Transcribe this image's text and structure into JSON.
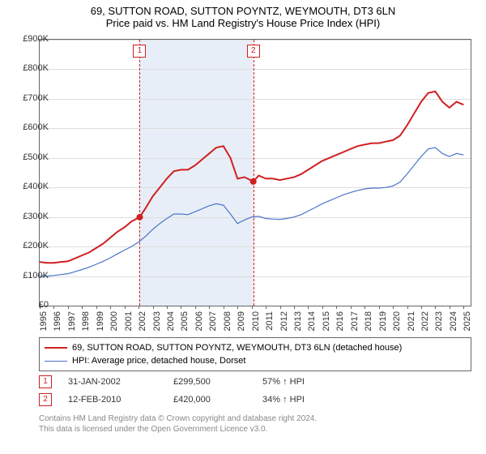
{
  "title": {
    "line1": "69, SUTTON ROAD, SUTTON POYNTZ, WEYMOUTH, DT3 6LN",
    "line2": "Price paid vs. HM Land Registry's House Price Index (HPI)"
  },
  "chart": {
    "type": "line",
    "background_color": "#ffffff",
    "grid_color": "#dddddd",
    "border_color": "#666666",
    "shade_color": "#e8eef7",
    "shade_range": [
      2002.08,
      2010.12
    ],
    "xlim": [
      1995,
      2025.5
    ],
    "ylim": [
      0,
      900
    ],
    "ytick_step": 100,
    "yticks": [
      "£0",
      "£100K",
      "£200K",
      "£300K",
      "£400K",
      "£500K",
      "£600K",
      "£700K",
      "£800K",
      "£900K"
    ],
    "xticks": [
      "1995",
      "1996",
      "1997",
      "1998",
      "1999",
      "2000",
      "2001",
      "2002",
      "2003",
      "2004",
      "2005",
      "2006",
      "2007",
      "2008",
      "2009",
      "2010",
      "2011",
      "2012",
      "2013",
      "2014",
      "2015",
      "2016",
      "2017",
      "2018",
      "2019",
      "2020",
      "2021",
      "2022",
      "2023",
      "2024",
      "2025"
    ],
    "label_fontsize": 11,
    "series": [
      {
        "name": "subject",
        "label": "69, SUTTON ROAD, SUTTON POYNTZ, WEYMOUTH, DT3 6LN (detached house)",
        "color": "#d02020",
        "line_width": 2,
        "data": [
          [
            1995,
            148
          ],
          [
            1995.5,
            145
          ],
          [
            1996,
            145
          ],
          [
            1996.5,
            148
          ],
          [
            1997,
            150
          ],
          [
            1997.5,
            160
          ],
          [
            1998,
            170
          ],
          [
            1998.5,
            180
          ],
          [
            1999,
            195
          ],
          [
            1999.5,
            210
          ],
          [
            2000,
            230
          ],
          [
            2000.5,
            250
          ],
          [
            2001,
            265
          ],
          [
            2001.5,
            285
          ],
          [
            2002.08,
            299.5
          ],
          [
            2002.5,
            330
          ],
          [
            2003,
            370
          ],
          [
            2003.5,
            400
          ],
          [
            2004,
            430
          ],
          [
            2004.5,
            455
          ],
          [
            2005,
            460
          ],
          [
            2005.5,
            460
          ],
          [
            2006,
            475
          ],
          [
            2006.5,
            495
          ],
          [
            2007,
            515
          ],
          [
            2007.5,
            535
          ],
          [
            2008,
            540
          ],
          [
            2008.5,
            500
          ],
          [
            2009,
            430
          ],
          [
            2009.5,
            435
          ],
          [
            2010.12,
            420
          ],
          [
            2010.5,
            440
          ],
          [
            2011,
            430
          ],
          [
            2011.5,
            430
          ],
          [
            2012,
            425
          ],
          [
            2012.5,
            430
          ],
          [
            2013,
            435
          ],
          [
            2013.5,
            445
          ],
          [
            2014,
            460
          ],
          [
            2014.5,
            475
          ],
          [
            2015,
            490
          ],
          [
            2015.5,
            500
          ],
          [
            2016,
            510
          ],
          [
            2016.5,
            520
          ],
          [
            2017,
            530
          ],
          [
            2017.5,
            540
          ],
          [
            2018,
            545
          ],
          [
            2018.5,
            550
          ],
          [
            2019,
            550
          ],
          [
            2019.5,
            555
          ],
          [
            2020,
            560
          ],
          [
            2020.5,
            575
          ],
          [
            2021,
            610
          ],
          [
            2021.5,
            650
          ],
          [
            2022,
            690
          ],
          [
            2022.5,
            720
          ],
          [
            2023,
            725
          ],
          [
            2023.5,
            690
          ],
          [
            2024,
            670
          ],
          [
            2024.5,
            690
          ],
          [
            2025,
            680
          ]
        ]
      },
      {
        "name": "hpi",
        "label": "HPI: Average price, detached house, Dorset",
        "color": "#4a74c8",
        "line_width": 1.2,
        "data": [
          [
            1995,
            100
          ],
          [
            1995.5,
            100
          ],
          [
            1996,
            102
          ],
          [
            1996.5,
            105
          ],
          [
            1997,
            108
          ],
          [
            1997.5,
            115
          ],
          [
            1998,
            122
          ],
          [
            1998.5,
            130
          ],
          [
            1999,
            140
          ],
          [
            1999.5,
            150
          ],
          [
            2000,
            162
          ],
          [
            2000.5,
            175
          ],
          [
            2001,
            188
          ],
          [
            2001.5,
            200
          ],
          [
            2002,
            215
          ],
          [
            2002.5,
            235
          ],
          [
            2003,
            258
          ],
          [
            2003.5,
            278
          ],
          [
            2004,
            295
          ],
          [
            2004.5,
            310
          ],
          [
            2005,
            310
          ],
          [
            2005.5,
            308
          ],
          [
            2006,
            318
          ],
          [
            2006.5,
            328
          ],
          [
            2007,
            338
          ],
          [
            2007.5,
            345
          ],
          [
            2008,
            340
          ],
          [
            2008.5,
            310
          ],
          [
            2009,
            278
          ],
          [
            2009.5,
            290
          ],
          [
            2010,
            300
          ],
          [
            2010.5,
            302
          ],
          [
            2011,
            295
          ],
          [
            2011.5,
            293
          ],
          [
            2012,
            292
          ],
          [
            2012.5,
            295
          ],
          [
            2013,
            300
          ],
          [
            2013.5,
            308
          ],
          [
            2014,
            320
          ],
          [
            2014.5,
            332
          ],
          [
            2015,
            345
          ],
          [
            2015.5,
            355
          ],
          [
            2016,
            365
          ],
          [
            2016.5,
            375
          ],
          [
            2017,
            383
          ],
          [
            2017.5,
            390
          ],
          [
            2018,
            395
          ],
          [
            2018.5,
            398
          ],
          [
            2019,
            398
          ],
          [
            2019.5,
            400
          ],
          [
            2020,
            405
          ],
          [
            2020.5,
            418
          ],
          [
            2021,
            445
          ],
          [
            2021.5,
            475
          ],
          [
            2022,
            505
          ],
          [
            2022.5,
            530
          ],
          [
            2023,
            535
          ],
          [
            2023.5,
            515
          ],
          [
            2024,
            505
          ],
          [
            2024.5,
            515
          ],
          [
            2025,
            510
          ]
        ]
      }
    ],
    "markers": [
      {
        "n": "1",
        "x": 2002.08,
        "y": 299.5
      },
      {
        "n": "2",
        "x": 2010.12,
        "y": 420
      }
    ]
  },
  "legend": {
    "border_color": "#666666",
    "items": [
      {
        "color": "#d02020",
        "label": "69, SUTTON ROAD, SUTTON POYNTZ, WEYMOUTH, DT3 6LN (detached house)"
      },
      {
        "color": "#4a74c8",
        "label": "HPI: Average price, detached house, Dorset"
      }
    ]
  },
  "transactions": [
    {
      "n": "1",
      "date": "31-JAN-2002",
      "price": "£299,500",
      "pct": "57% ↑ HPI"
    },
    {
      "n": "2",
      "date": "12-FEB-2010",
      "price": "£420,000",
      "pct": "34% ↑ HPI"
    }
  ],
  "footer": {
    "line1": "Contains HM Land Registry data © Crown copyright and database right 2024.",
    "line2": "This data is licensed under the Open Government Licence v3.0."
  }
}
